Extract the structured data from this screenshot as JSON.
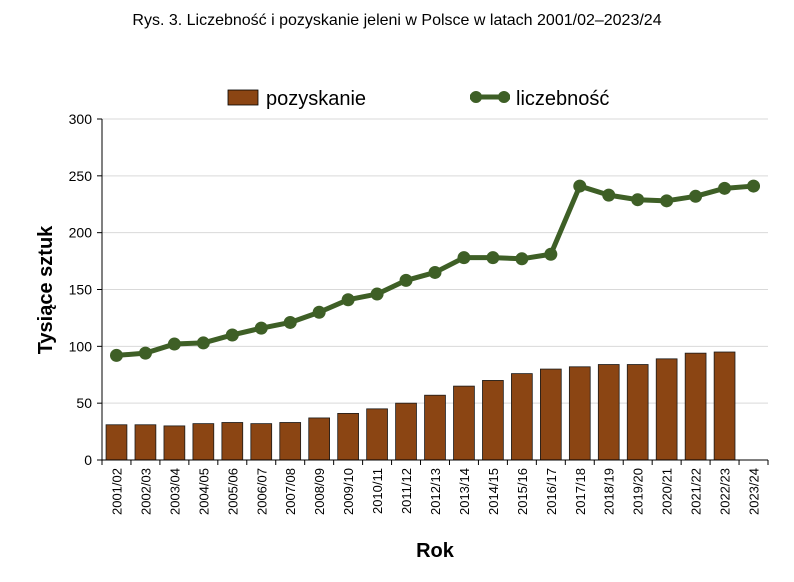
{
  "chart_data": {
    "type": "bar+line",
    "title": "Rys. 3. Liczebność i pozyskanie jeleni w Polsce w latach 2001/02–2023/24",
    "xlabel": "Rok",
    "ylabel": "Tysiące sztuk",
    "ylim": [
      0,
      300
    ],
    "yticks": [
      0,
      50,
      100,
      150,
      200,
      250,
      300
    ],
    "grid": "horizontal",
    "legend": "top",
    "categories": [
      "2001/02",
      "2002/03",
      "2003/04",
      "2004/05",
      "2005/06",
      "2006/07",
      "2007/08",
      "2008/09",
      "2009/10",
      "2010/11",
      "2011/12",
      "2012/13",
      "2013/14",
      "2014/15",
      "2015/16",
      "2016/17",
      "2017/18",
      "2018/19",
      "2019/20",
      "2020/21",
      "2021/22",
      "2022/23",
      "2023/24"
    ],
    "series": [
      {
        "name": "pozyskanie",
        "type": "bar",
        "color": "#8B4513",
        "values": [
          31,
          31,
          30,
          32,
          33,
          32,
          33,
          37,
          41,
          45,
          50,
          57,
          65,
          70,
          76,
          80,
          82,
          84,
          84,
          89,
          94,
          95,
          null
        ]
      },
      {
        "name": "liczebność",
        "type": "line",
        "color": "#3E5F26",
        "values": [
          92,
          94,
          102,
          103,
          110,
          116,
          121,
          130,
          141,
          146,
          158,
          165,
          178,
          178,
          177,
          181,
          241,
          233,
          229,
          228,
          232,
          239,
          241
        ]
      }
    ]
  }
}
